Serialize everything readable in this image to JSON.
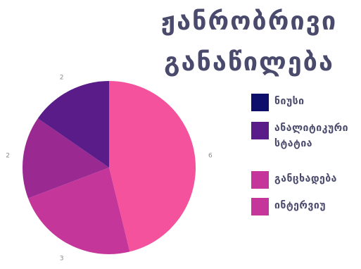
{
  "chart_data": {
    "type": "pie",
    "title": "ჟანრობრივი განაწილება",
    "title_lines": [
      "ჟანრობრივი",
      "განაწილება"
    ],
    "categories": [
      "ნიუსი",
      "ანალიტიკური სტატია",
      "განცხადება",
      "ინტერვიუ"
    ],
    "legend_lines": [
      [
        "ნიუსი"
      ],
      [
        "ანალიტიკური",
        "სტატია"
      ],
      [
        "განცხადება"
      ],
      [
        "ინტერვიუ"
      ]
    ],
    "slices": [
      {
        "label": "ინტერვიუ",
        "value": 6,
        "color": "#f4529c"
      },
      {
        "label": "განცხადება",
        "value": 3,
        "color": "#c5369a"
      },
      {
        "label": "ანალიტიკური სტატია",
        "value": 2,
        "color": "#9a2a92"
      },
      {
        "label": "ნიუსი",
        "value": 2,
        "color": "#591c88"
      }
    ],
    "legend": [
      {
        "label": "ნიუსი",
        "color": "#0d0f6b"
      },
      {
        "label": "ანალიტიკური სტატია",
        "color": "#591c88"
      },
      {
        "label": "განცხადება",
        "color": "#c5369a"
      },
      {
        "label": "ინტერვიუ",
        "color": "#c5369a"
      }
    ],
    "legend_position": "right",
    "start_angle_deg": 0,
    "direction": "clockwise"
  }
}
